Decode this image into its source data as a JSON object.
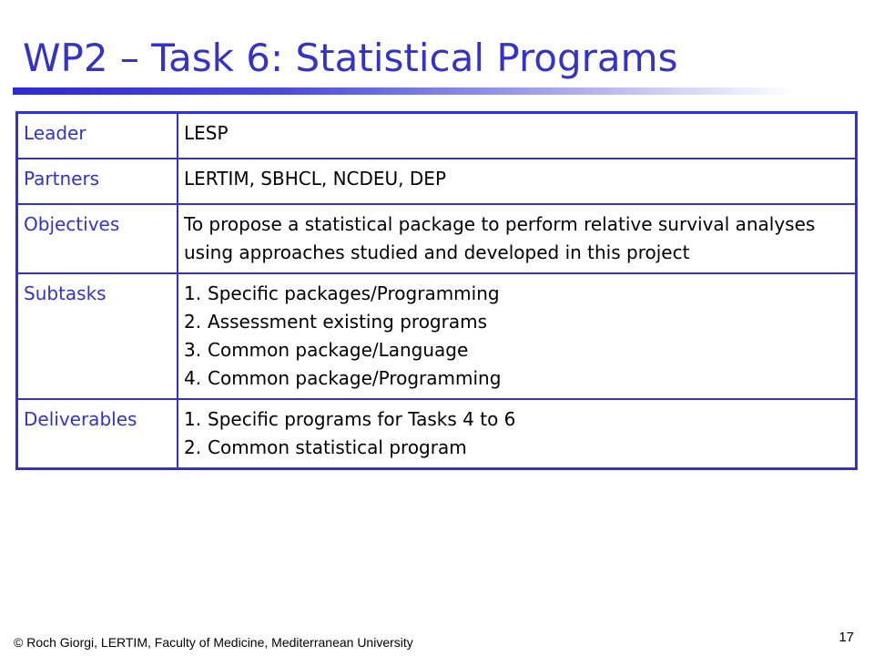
{
  "slide": {
    "title": "WP2 – Task 6: Statistical Programs",
    "footer": "© Roch Giorgi, LERTIM, Faculty of Medicine, Mediterranean University",
    "page_number": "17"
  },
  "table": {
    "leader": {
      "label": "Leader",
      "value": "LESP"
    },
    "partners": {
      "label": "Partners",
      "value": "LERTIM, SBHCL, NCDEU, DEP"
    },
    "objectives": {
      "label": "Objectives",
      "value": "To propose a statistical package to perform relative survival analyses using approaches studied and developed in this project"
    },
    "subtasks": {
      "label": "Subtasks",
      "items": [
        {
          "num": "1.",
          "text": "Specific packages/Programming"
        },
        {
          "num": "2.",
          "text": "Assessment existing programs"
        },
        {
          "num": "3.",
          "text": "Common package/Language"
        },
        {
          "num": "4.",
          "text": "Common package/Programming"
        }
      ]
    },
    "deliverables": {
      "label": "Deliverables",
      "items": [
        {
          "num": "1.",
          "text": "Specific programs for Tasks 4 to 6"
        },
        {
          "num": "2.",
          "text": "Common statistical program"
        }
      ]
    }
  },
  "colors": {
    "accent": "#3333cc",
    "text": "#000000",
    "background": "#ffffff"
  }
}
